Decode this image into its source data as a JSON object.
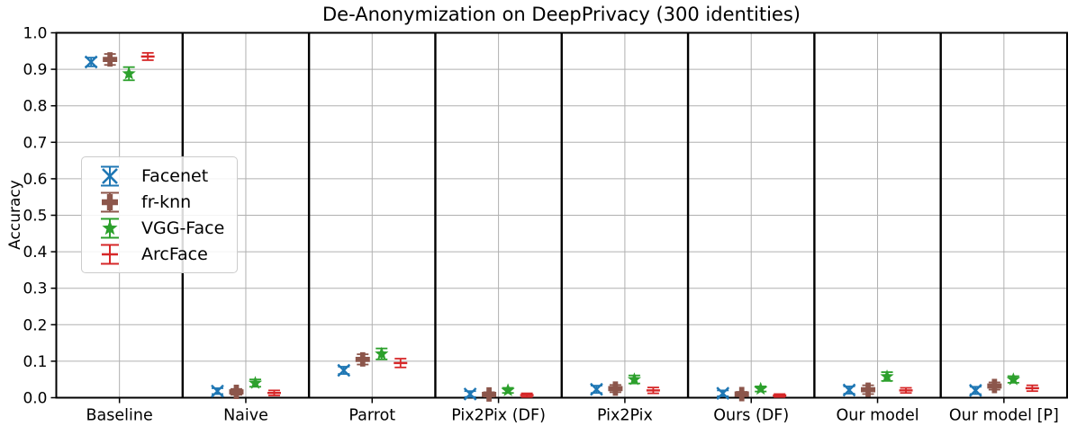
{
  "chart_data": {
    "type": "scatter",
    "subtype": "errorbar-grouped-panels",
    "title": "De-Anonymization on DeepPrivacy (300 identities)",
    "ylabel": "Accuracy",
    "xlabel": "",
    "ylim": [
      0.0,
      1.0
    ],
    "ytick_labels": [
      "0.0",
      "0.1",
      "0.2",
      "0.3",
      "0.4",
      "0.5",
      "0.6",
      "0.7",
      "0.8",
      "0.9",
      "1.0"
    ],
    "grid": true,
    "categories": [
      "Baseline",
      "Naive",
      "Parrot",
      "Pix2Pix (DF)",
      "Pix2Pix",
      "Ours (DF)",
      "Our model",
      "Our model [P]"
    ],
    "legend": {
      "position": "upper left",
      "entries": [
        "Facenet",
        "fr-knn",
        "VGG-Face",
        "ArcFace"
      ]
    },
    "series": [
      {
        "name": "Facenet",
        "color": "#1f77b4",
        "marker": "x",
        "values": [
          0.92,
          0.018,
          0.075,
          0.01,
          0.023,
          0.012,
          0.021,
          0.02
        ],
        "errors": [
          0.012,
          0.008,
          0.01,
          0.008,
          0.01,
          0.008,
          0.01,
          0.01
        ]
      },
      {
        "name": "fr-knn",
        "color": "#8c564b",
        "marker": "plus-filled",
        "values": [
          0.927,
          0.016,
          0.105,
          0.009,
          0.025,
          0.01,
          0.022,
          0.032
        ],
        "errors": [
          0.015,
          0.008,
          0.014,
          0.006,
          0.01,
          0.006,
          0.012,
          0.01
        ]
      },
      {
        "name": "VGG-Face",
        "color": "#2ca02c",
        "marker": "star",
        "values": [
          0.888,
          0.04,
          0.12,
          0.02,
          0.05,
          0.024,
          0.058,
          0.05
        ],
        "errors": [
          0.018,
          0.01,
          0.015,
          0.007,
          0.011,
          0.007,
          0.012,
          0.009
        ]
      },
      {
        "name": "ArcFace",
        "color": "#d62728",
        "marker": "hline",
        "values": [
          0.935,
          0.013,
          0.095,
          0.007,
          0.02,
          0.006,
          0.02,
          0.026
        ],
        "errors": [
          0.01,
          0.007,
          0.012,
          0.005,
          0.008,
          0.004,
          0.007,
          0.008
        ]
      }
    ],
    "style_colors": {
      "grid": "#b0b0b0",
      "panel_separator": "#000000",
      "frame": "#000000",
      "tick_text": "#000000",
      "legend_border": "#cccccc",
      "background": "#ffffff"
    }
  }
}
